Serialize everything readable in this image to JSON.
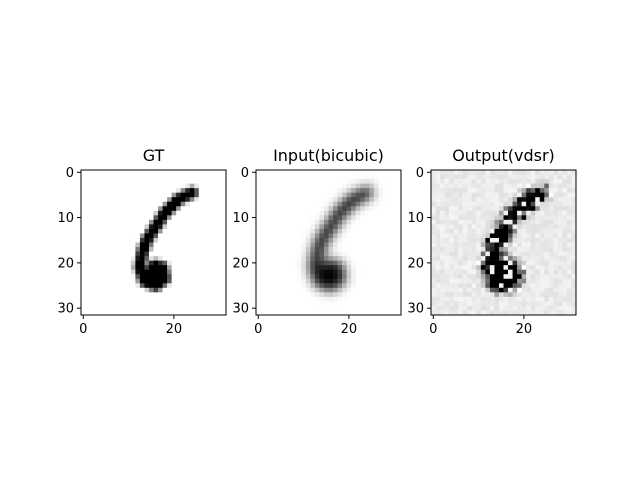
{
  "chart_data": [
    {
      "type": "heatmap",
      "title": "GT",
      "colormap": "gray_r",
      "shape": [
        32,
        32
      ],
      "xlim": [
        -0.5,
        31.5
      ],
      "ylim": [
        31.5,
        -0.5
      ],
      "xticks": [
        0,
        20
      ],
      "yticks": [
        0,
        10,
        20,
        30
      ],
      "content": "handwritten digit 6 (sharp)"
    },
    {
      "type": "heatmap",
      "title": "Input(bicubic)",
      "colormap": "gray_r",
      "shape": [
        32,
        32
      ],
      "xlim": [
        -0.5,
        31.5
      ],
      "ylim": [
        31.5,
        -0.5
      ],
      "xticks": [
        0,
        20
      ],
      "yticks": [
        0,
        10,
        20,
        30
      ],
      "content": "blurred digit 6 (bicubic upsampled)"
    },
    {
      "type": "heatmap",
      "title": "Output(vdsr)",
      "colormap": "gray_r",
      "shape": [
        32,
        32
      ],
      "xlim": [
        -0.5,
        31.5
      ],
      "ylim": [
        31.5,
        -0.5
      ],
      "xticks": [
        0,
        20
      ],
      "yticks": [
        0,
        10,
        20,
        30
      ],
      "content": "noisy blocky reconstruction"
    }
  ]
}
